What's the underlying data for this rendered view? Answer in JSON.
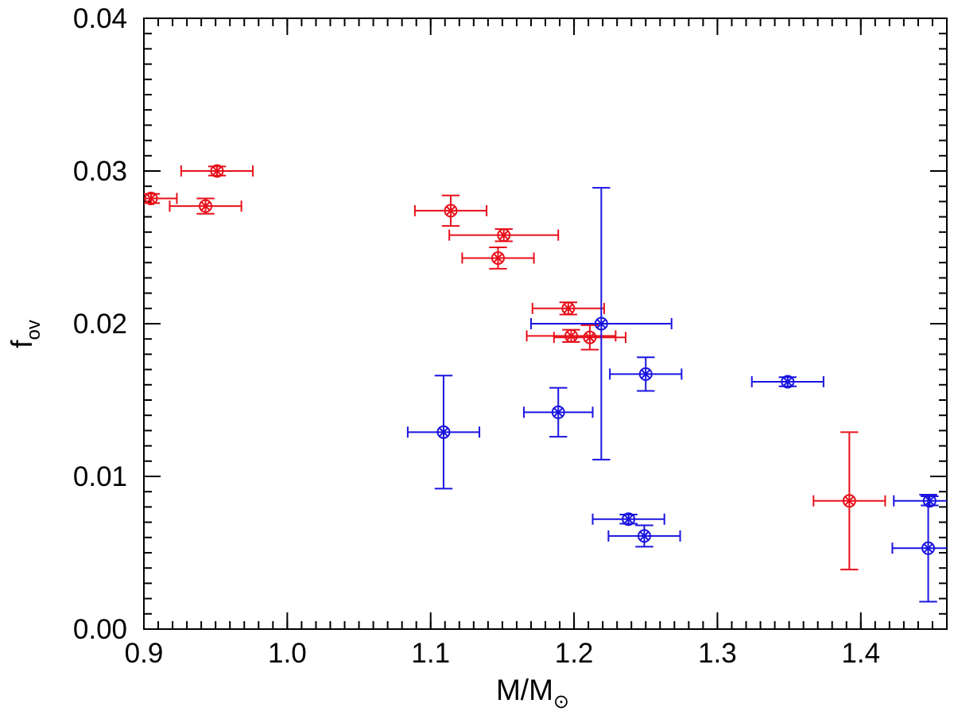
{
  "chart_data": {
    "type": "scatter",
    "xlabel": "M/M",
    "xlabel_subscript": "⊙",
    "ylabel": "f",
    "ylabel_subscript": "ov",
    "xlim": [
      0.9,
      1.46
    ],
    "ylim": [
      0.0,
      0.04
    ],
    "x_ticks": [
      "0.9",
      "1.0",
      "1.1",
      "1.2",
      "1.3",
      "1.4"
    ],
    "y_ticks": [
      "0.00",
      "0.01",
      "0.02",
      "0.03",
      "0.04"
    ],
    "grid": false,
    "series": [
      {
        "name": "red",
        "color": "#e8101a",
        "points": [
          {
            "x": 0.905,
            "y": 0.0282,
            "xerr": 0.018,
            "yerr": 0.0003
          },
          {
            "x": 0.951,
            "y": 0.03,
            "xerr": 0.025,
            "yerr": 0.0003
          },
          {
            "x": 0.943,
            "y": 0.0277,
            "xerr": 0.025,
            "yerr": 0.0005
          },
          {
            "x": 1.114,
            "y": 0.0274,
            "xerr": 0.025,
            "yerr": 0.001
          },
          {
            "x": 1.151,
            "y": 0.0258,
            "xerr": 0.038,
            "yerr": 0.0004
          },
          {
            "x": 1.147,
            "y": 0.0243,
            "xerr": 0.025,
            "yerr": 0.0007
          },
          {
            "x": 1.196,
            "y": 0.021,
            "xerr": 0.025,
            "yerr": 0.0004
          },
          {
            "x": 1.198,
            "y": 0.0192,
            "xerr": 0.031,
            "yerr": 0.0004
          },
          {
            "x": 1.211,
            "y": 0.0191,
            "xerr": 0.025,
            "yerr": 0.0008
          },
          {
            "x": 1.392,
            "y": 0.0084,
            "xerr": 0.025,
            "yerr": 0.0045
          }
        ]
      },
      {
        "name": "blue",
        "color": "#1a14e0",
        "points": [
          {
            "x": 1.109,
            "y": 0.0129,
            "xerr": 0.025,
            "yerr": 0.0037
          },
          {
            "x": 1.189,
            "y": 0.0142,
            "xerr": 0.024,
            "yerr": 0.0016
          },
          {
            "x": 1.219,
            "y": 0.02,
            "xerr": 0.049,
            "yerr": 0.0089
          },
          {
            "x": 1.25,
            "y": 0.0167,
            "xerr": 0.025,
            "yerr": 0.0011
          },
          {
            "x": 1.349,
            "y": 0.0162,
            "xerr": 0.025,
            "yerr": 0.0003
          },
          {
            "x": 1.238,
            "y": 0.0072,
            "xerr": 0.025,
            "yerr": 0.0003
          },
          {
            "x": 1.249,
            "y": 0.0061,
            "xerr": 0.025,
            "yerr": 0.0007
          },
          {
            "x": 1.447,
            "y": 0.0053,
            "xerr": 0.025,
            "yerr": 0.0035
          },
          {
            "x": 1.448,
            "y": 0.0084,
            "xerr": 0.025,
            "yerr": 0.0003
          }
        ]
      }
    ]
  }
}
